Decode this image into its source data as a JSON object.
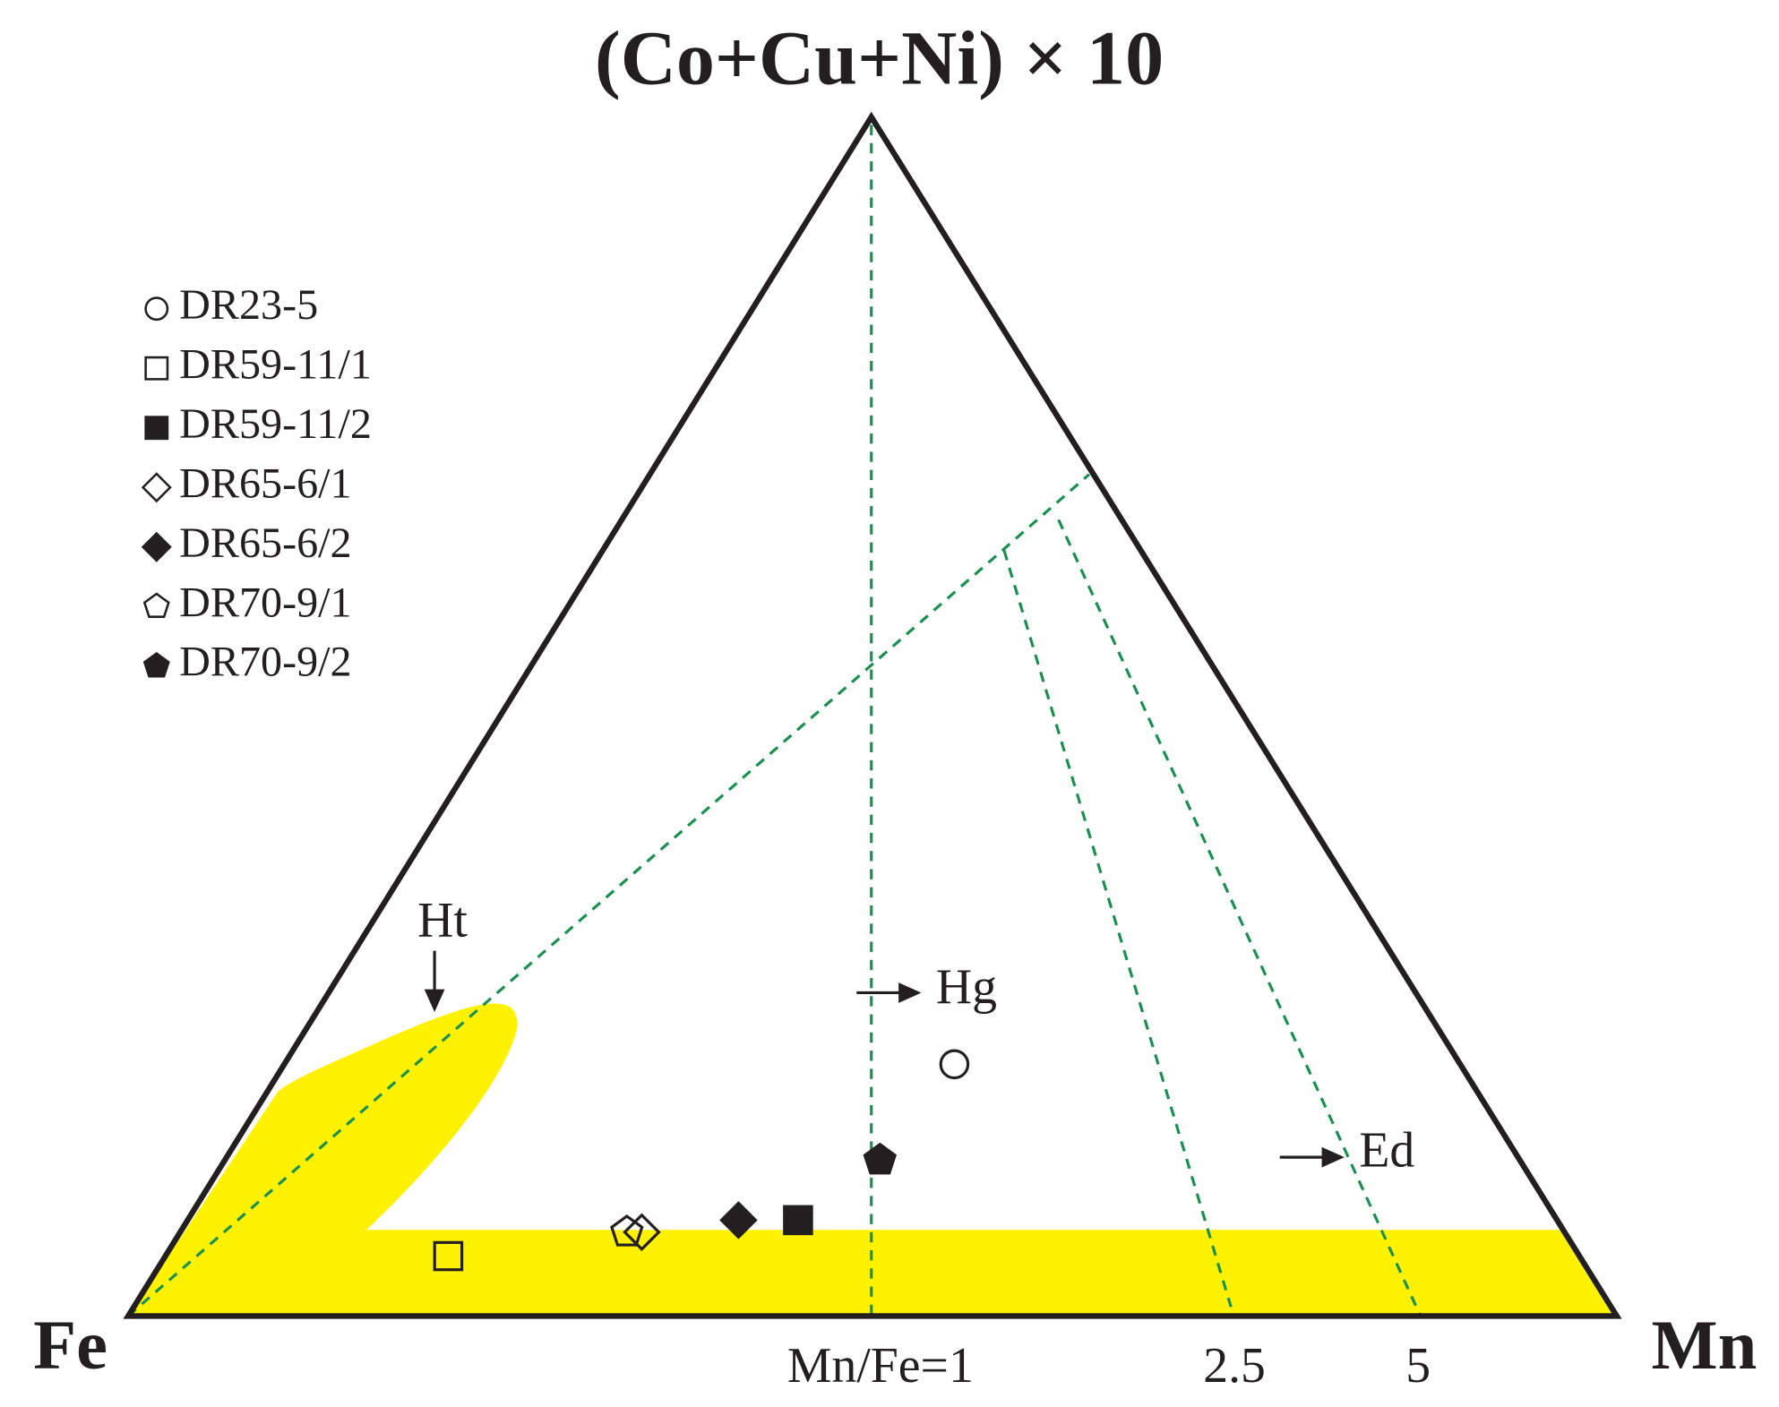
{
  "chart_data": {
    "type": "ternary",
    "components": [
      "Fe",
      "Mn",
      "(Co+Cu+Ni) × 10"
    ],
    "series": [
      {
        "name": "DR23-5",
        "marker": "circle",
        "filled": false,
        "values": [
          34,
          45,
          21
        ]
      },
      {
        "name": "DR59-11/1",
        "marker": "square",
        "filled": false,
        "values": [
          76,
          19,
          5
        ]
      },
      {
        "name": "DR59-11/2",
        "marker": "square",
        "filled": true,
        "values": [
          51,
          41,
          8
        ]
      },
      {
        "name": "DR65-6/1",
        "marker": "diamond",
        "filled": false,
        "values": [
          62,
          31,
          7
        ]
      },
      {
        "name": "DR65-6/2",
        "marker": "diamond",
        "filled": true,
        "values": [
          55,
          37,
          8
        ]
      },
      {
        "name": "DR70-9/1",
        "marker": "pentagon",
        "filled": false,
        "values": [
          63,
          30,
          7
        ]
      },
      {
        "name": "DR70-9/2",
        "marker": "pentagon",
        "filled": true,
        "values": [
          43,
          44,
          13
        ]
      }
    ],
    "ratio_labels": [
      "Mn/Fe=1",
      "2.5",
      "5"
    ],
    "field_labels": [
      "Ht",
      "Hg",
      "Ed"
    ]
  }
}
